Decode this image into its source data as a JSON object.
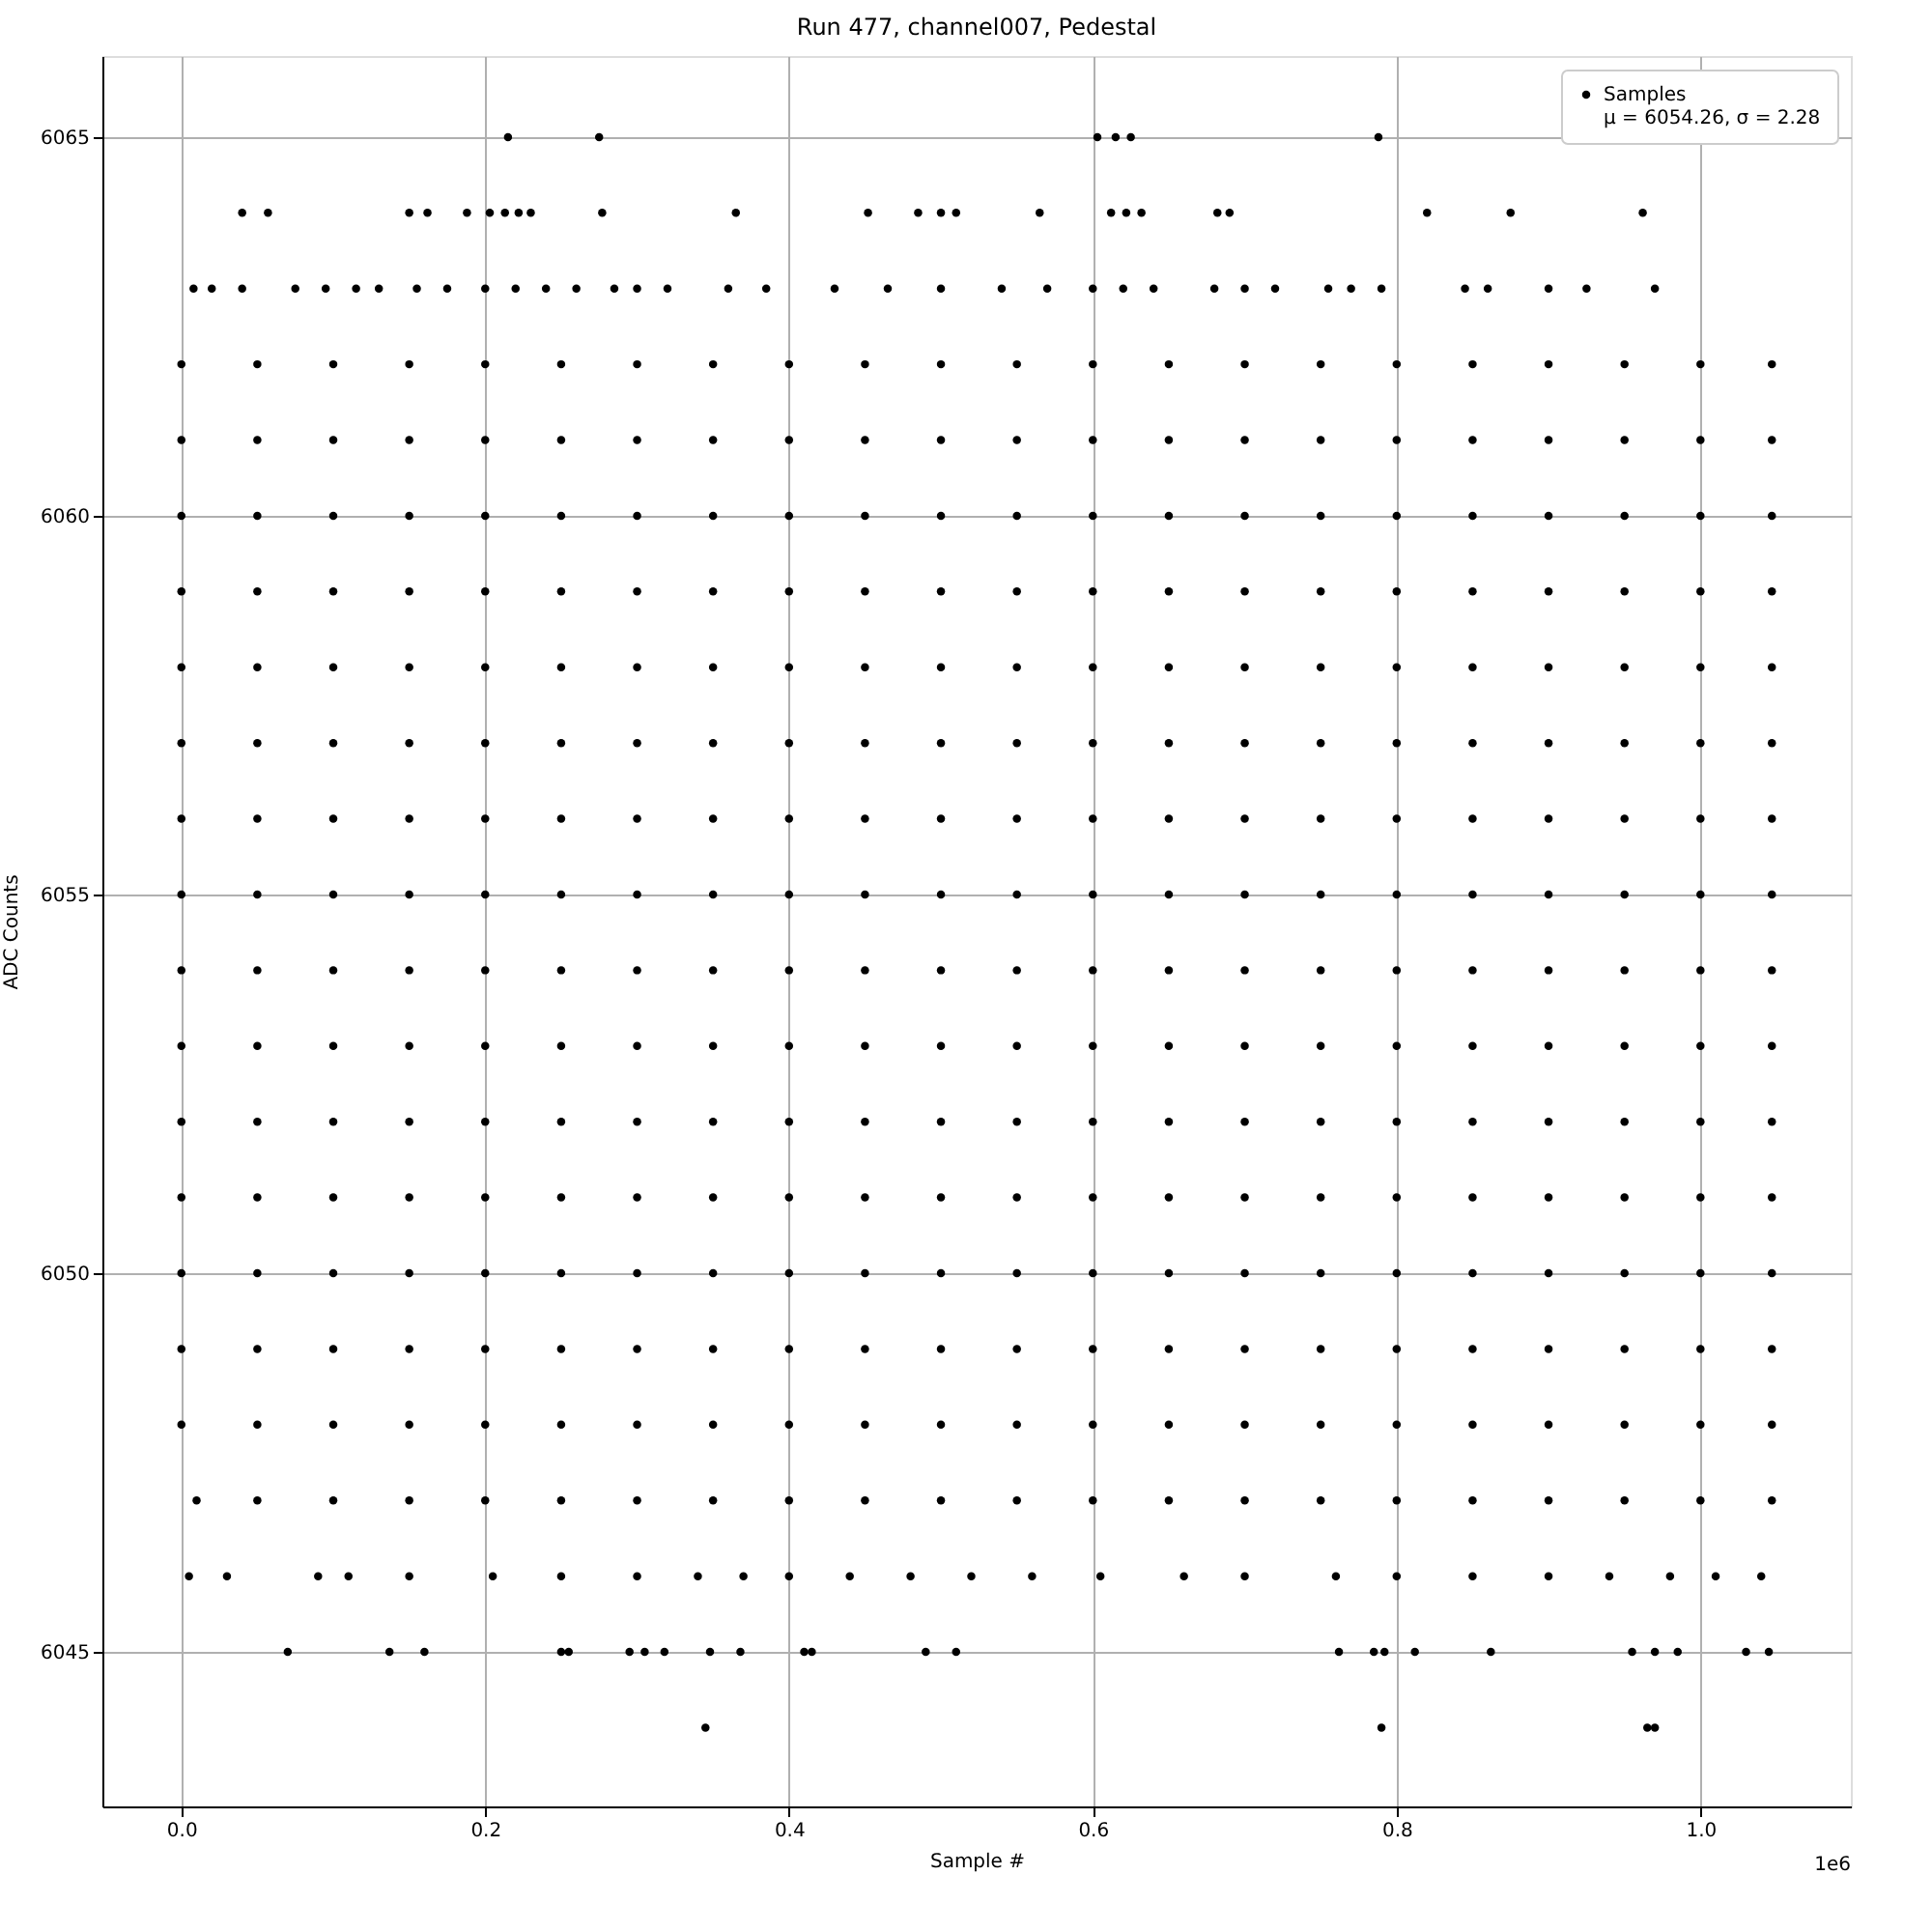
{
  "chart_data": {
    "type": "scatter",
    "title": "Run 477, channel007, Pedestal",
    "xlabel": "Sample #",
    "ylabel": "ADC Counts",
    "xlim": [
      -0.052,
      1.099
    ],
    "ylim": [
      6042.96,
      6066.07
    ],
    "xticks": [
      {
        "value": 0,
        "label": "0.0"
      },
      0.2,
      0.4,
      0.6,
      0.8,
      {
        "value": 1,
        "label": "1.0"
      }
    ],
    "yticks": [
      6045,
      6050,
      6055,
      6060,
      6065
    ],
    "grid": true,
    "legend": "top right",
    "marker": "circle",
    "annotations": [
      "1e6"
    ],
    "series": [
      {
        "name": "Samples\nμ = 6054.26, σ = 2.28",
        "color": "#000000",
        "x": [
          0.215,
          0.275,
          0.603,
          0.615,
          0.625,
          0.788,
          0.04,
          0.057,
          0.15,
          0.162,
          0.188,
          0.203,
          0.213,
          0.222,
          0.23,
          0.277,
          0.365,
          0.452,
          0.485,
          0.5,
          0.51,
          0.565,
          0.612,
          0.622,
          0.632,
          0.682,
          0.69,
          0.82,
          0.875,
          0.962,
          0.008,
          0.02,
          0.04,
          0.075,
          0.095,
          0.115,
          0.13,
          0.155,
          0.175,
          0.2,
          0.22,
          0.24,
          0.26,
          0.285,
          0.3,
          0.32,
          0.36,
          0.385,
          0.43,
          0.465,
          0.5,
          0.54,
          0.57,
          0.6,
          0.62,
          0.64,
          0.68,
          0.7,
          0.72,
          0.755,
          0.77,
          0.79,
          0.845,
          0.86,
          0.9,
          0.925,
          0.97,
          0,
          0.05,
          0.1,
          0.15,
          0.2,
          0.25,
          0.3,
          0.35,
          0.4,
          0.45,
          0.5,
          0.55,
          0.6,
          0.65,
          0.7,
          0.75,
          0.8,
          0.85,
          0.9,
          0.95,
          1.0,
          1.047,
          0,
          0.05,
          0.1,
          0.15,
          0.2,
          0.25,
          0.3,
          0.35,
          0.4,
          0.45,
          0.5,
          0.55,
          0.6,
          0.65,
          0.7,
          0.75,
          0.8,
          0.85,
          0.9,
          0.95,
          1.0,
          1.047,
          0,
          0.05,
          0.1,
          0.15,
          0.2,
          0.25,
          0.3,
          0.35,
          0.4,
          0.45,
          0.5,
          0.55,
          0.6,
          0.65,
          0.7,
          0.75,
          0.8,
          0.85,
          0.9,
          0.95,
          1.0,
          1.047,
          0,
          0.05,
          0.1,
          0.15,
          0.2,
          0.25,
          0.3,
          0.35,
          0.4,
          0.45,
          0.5,
          0.55,
          0.6,
          0.65,
          0.7,
          0.75,
          0.8,
          0.85,
          0.9,
          0.95,
          1.0,
          1.047,
          0,
          0.05,
          0.1,
          0.15,
          0.2,
          0.25,
          0.3,
          0.35,
          0.4,
          0.45,
          0.5,
          0.55,
          0.6,
          0.65,
          0.7,
          0.75,
          0.8,
          0.85,
          0.9,
          0.95,
          1.0,
          1.047,
          0,
          0.05,
          0.1,
          0.15,
          0.2,
          0.25,
          0.3,
          0.35,
          0.4,
          0.45,
          0.5,
          0.55,
          0.6,
          0.65,
          0.7,
          0.75,
          0.8,
          0.85,
          0.9,
          0.95,
          1.0,
          1.047,
          0,
          0.05,
          0.1,
          0.15,
          0.2,
          0.25,
          0.3,
          0.35,
          0.4,
          0.45,
          0.5,
          0.55,
          0.6,
          0.65,
          0.7,
          0.75,
          0.8,
          0.85,
          0.9,
          0.95,
          1.0,
          1.047,
          0,
          0.05,
          0.1,
          0.15,
          0.2,
          0.25,
          0.3,
          0.35,
          0.4,
          0.45,
          0.5,
          0.55,
          0.6,
          0.65,
          0.7,
          0.75,
          0.8,
          0.85,
          0.9,
          0.95,
          1.0,
          1.047,
          0,
          0.05,
          0.1,
          0.15,
          0.2,
          0.25,
          0.3,
          0.35,
          0.4,
          0.45,
          0.5,
          0.55,
          0.6,
          0.65,
          0.7,
          0.75,
          0.8,
          0.85,
          0.9,
          0.95,
          1.0,
          1.047,
          0,
          0.05,
          0.1,
          0.15,
          0.2,
          0.25,
          0.3,
          0.35,
          0.4,
          0.45,
          0.5,
          0.55,
          0.6,
          0.65,
          0.7,
          0.75,
          0.8,
          0.85,
          0.9,
          0.95,
          1.0,
          1.047,
          0,
          0.05,
          0.1,
          0.15,
          0.2,
          0.25,
          0.3,
          0.35,
          0.4,
          0.45,
          0.5,
          0.55,
          0.6,
          0.65,
          0.7,
          0.75,
          0.8,
          0.85,
          0.9,
          0.95,
          1.0,
          1.047,
          0,
          0.05,
          0.1,
          0.15,
          0.2,
          0.25,
          0.3,
          0.35,
          0.4,
          0.45,
          0.5,
          0.55,
          0.6,
          0.65,
          0.7,
          0.75,
          0.8,
          0.85,
          0.9,
          0.95,
          1.0,
          1.047,
          0,
          0.05,
          0.1,
          0.15,
          0.2,
          0.25,
          0.3,
          0.35,
          0.4,
          0.45,
          0.5,
          0.55,
          0.6,
          0.65,
          0.7,
          0.75,
          0.8,
          0.85,
          0.9,
          0.95,
          1.0,
          1.047,
          0,
          0.05,
          0.1,
          0.15,
          0.2,
          0.25,
          0.3,
          0.35,
          0.4,
          0.45,
          0.5,
          0.55,
          0.6,
          0.65,
          0.7,
          0.75,
          0.8,
          0.85,
          0.9,
          0.95,
          1.0,
          1.047,
          0,
          0.05,
          0.1,
          0.15,
          0.2,
          0.25,
          0.3,
          0.35,
          0.4,
          0.45,
          0.5,
          0.55,
          0.6,
          0.65,
          0.7,
          0.75,
          0.8,
          0.85,
          0.9,
          0.95,
          1.0,
          1.047,
          0.01,
          0.05,
          0.1,
          0.15,
          0.2,
          0.25,
          0.3,
          0.35,
          0.4,
          0.45,
          0.5,
          0.55,
          0.6,
          0.65,
          0.7,
          0.75,
          0.8,
          0.85,
          0.9,
          0.95,
          1.0,
          1.047,
          0.005,
          0.03,
          0.09,
          0.11,
          0.15,
          0.205,
          0.25,
          0.3,
          0.34,
          0.37,
          0.4,
          0.44,
          0.48,
          0.52,
          0.56,
          0.605,
          0.66,
          0.7,
          0.76,
          0.8,
          0.85,
          0.9,
          0.94,
          0.98,
          1.01,
          1.04,
          0.07,
          0.137,
          0.16,
          0.25,
          0.255,
          0.295,
          0.305,
          0.318,
          0.348,
          0.368,
          0.41,
          0.415,
          0.49,
          0.51,
          0.762,
          0.785,
          0.792,
          0.812,
          0.862,
          0.955,
          0.97,
          0.985,
          1.03,
          1.045,
          0.345,
          0.79,
          0.965,
          0.97
        ],
        "values": [
          6065,
          6065,
          6065,
          6065,
          6065,
          6065,
          6064,
          6064,
          6064,
          6064,
          6064,
          6064,
          6064,
          6064,
          6064,
          6064,
          6064,
          6064,
          6064,
          6064,
          6064,
          6064,
          6064,
          6064,
          6064,
          6064,
          6064,
          6064,
          6064,
          6064,
          6063,
          6063,
          6063,
          6063,
          6063,
          6063,
          6063,
          6063,
          6063,
          6063,
          6063,
          6063,
          6063,
          6063,
          6063,
          6063,
          6063,
          6063,
          6063,
          6063,
          6063,
          6063,
          6063,
          6063,
          6063,
          6063,
          6063,
          6063,
          6063,
          6063,
          6063,
          6063,
          6063,
          6063,
          6063,
          6063,
          6063,
          6062,
          6062,
          6062,
          6062,
          6062,
          6062,
          6062,
          6062,
          6062,
          6062,
          6062,
          6062,
          6062,
          6062,
          6062,
          6062,
          6062,
          6062,
          6062,
          6062,
          6062,
          6062,
          6061,
          6061,
          6061,
          6061,
          6061,
          6061,
          6061,
          6061,
          6061,
          6061,
          6061,
          6061,
          6061,
          6061,
          6061,
          6061,
          6061,
          6061,
          6061,
          6061,
          6061,
          6061,
          6060,
          6060,
          6060,
          6060,
          6060,
          6060,
          6060,
          6060,
          6060,
          6060,
          6060,
          6060,
          6060,
          6060,
          6060,
          6060,
          6060,
          6060,
          6060,
          6060,
          6060,
          6060,
          6059,
          6059,
          6059,
          6059,
          6059,
          6059,
          6059,
          6059,
          6059,
          6059,
          6059,
          6059,
          6059,
          6059,
          6059,
          6059,
          6059,
          6059,
          6059,
          6059,
          6059,
          6059,
          6058,
          6058,
          6058,
          6058,
          6058,
          6058,
          6058,
          6058,
          6058,
          6058,
          6058,
          6058,
          6058,
          6058,
          6058,
          6058,
          6058,
          6058,
          6058,
          6058,
          6058,
          6058,
          6057,
          6057,
          6057,
          6057,
          6057,
          6057,
          6057,
          6057,
          6057,
          6057,
          6057,
          6057,
          6057,
          6057,
          6057,
          6057,
          6057,
          6057,
          6057,
          6057,
          6057,
          6057,
          6056,
          6056,
          6056,
          6056,
          6056,
          6056,
          6056,
          6056,
          6056,
          6056,
          6056,
          6056,
          6056,
          6056,
          6056,
          6056,
          6056,
          6056,
          6056,
          6056,
          6056,
          6056,
          6055,
          6055,
          6055,
          6055,
          6055,
          6055,
          6055,
          6055,
          6055,
          6055,
          6055,
          6055,
          6055,
          6055,
          6055,
          6055,
          6055,
          6055,
          6055,
          6055,
          6055,
          6055,
          6054,
          6054,
          6054,
          6054,
          6054,
          6054,
          6054,
          6054,
          6054,
          6054,
          6054,
          6054,
          6054,
          6054,
          6054,
          6054,
          6054,
          6054,
          6054,
          6054,
          6054,
          6054,
          6053,
          6053,
          6053,
          6053,
          6053,
          6053,
          6053,
          6053,
          6053,
          6053,
          6053,
          6053,
          6053,
          6053,
          6053,
          6053,
          6053,
          6053,
          6053,
          6053,
          6053,
          6053,
          6052,
          6052,
          6052,
          6052,
          6052,
          6052,
          6052,
          6052,
          6052,
          6052,
          6052,
          6052,
          6052,
          6052,
          6052,
          6052,
          6052,
          6052,
          6052,
          6052,
          6052,
          6052,
          6051,
          6051,
          6051,
          6051,
          6051,
          6051,
          6051,
          6051,
          6051,
          6051,
          6051,
          6051,
          6051,
          6051,
          6051,
          6051,
          6051,
          6051,
          6051,
          6051,
          6051,
          6051,
          6050,
          6050,
          6050,
          6050,
          6050,
          6050,
          6050,
          6050,
          6050,
          6050,
          6050,
          6050,
          6050,
          6050,
          6050,
          6050,
          6050,
          6050,
          6050,
          6050,
          6050,
          6050,
          6049,
          6049,
          6049,
          6049,
          6049,
          6049,
          6049,
          6049,
          6049,
          6049,
          6049,
          6049,
          6049,
          6049,
          6049,
          6049,
          6049,
          6049,
          6049,
          6049,
          6049,
          6049,
          6048,
          6048,
          6048,
          6048,
          6048,
          6048,
          6048,
          6048,
          6048,
          6048,
          6048,
          6048,
          6048,
          6048,
          6048,
          6048,
          6048,
          6048,
          6048,
          6048,
          6048,
          6048,
          6047,
          6047,
          6047,
          6047,
          6047,
          6047,
          6047,
          6047,
          6047,
          6047,
          6047,
          6047,
          6047,
          6047,
          6047,
          6047,
          6047,
          6047,
          6047,
          6047,
          6047,
          6047,
          6046,
          6046,
          6046,
          6046,
          6046,
          6046,
          6046,
          6046,
          6046,
          6046,
          6046,
          6046,
          6046,
          6046,
          6046,
          6046,
          6046,
          6046,
          6046,
          6046,
          6046,
          6046,
          6046,
          6046,
          6046,
          6046,
          6045,
          6045,
          6045,
          6045,
          6045,
          6045,
          6045,
          6045,
          6045,
          6045,
          6045,
          6045,
          6045,
          6045,
          6045,
          6045,
          6045,
          6045,
          6045,
          6045,
          6045,
          6045,
          6045,
          6045,
          6044,
          6044,
          6044,
          6044
        ]
      }
    ]
  }
}
